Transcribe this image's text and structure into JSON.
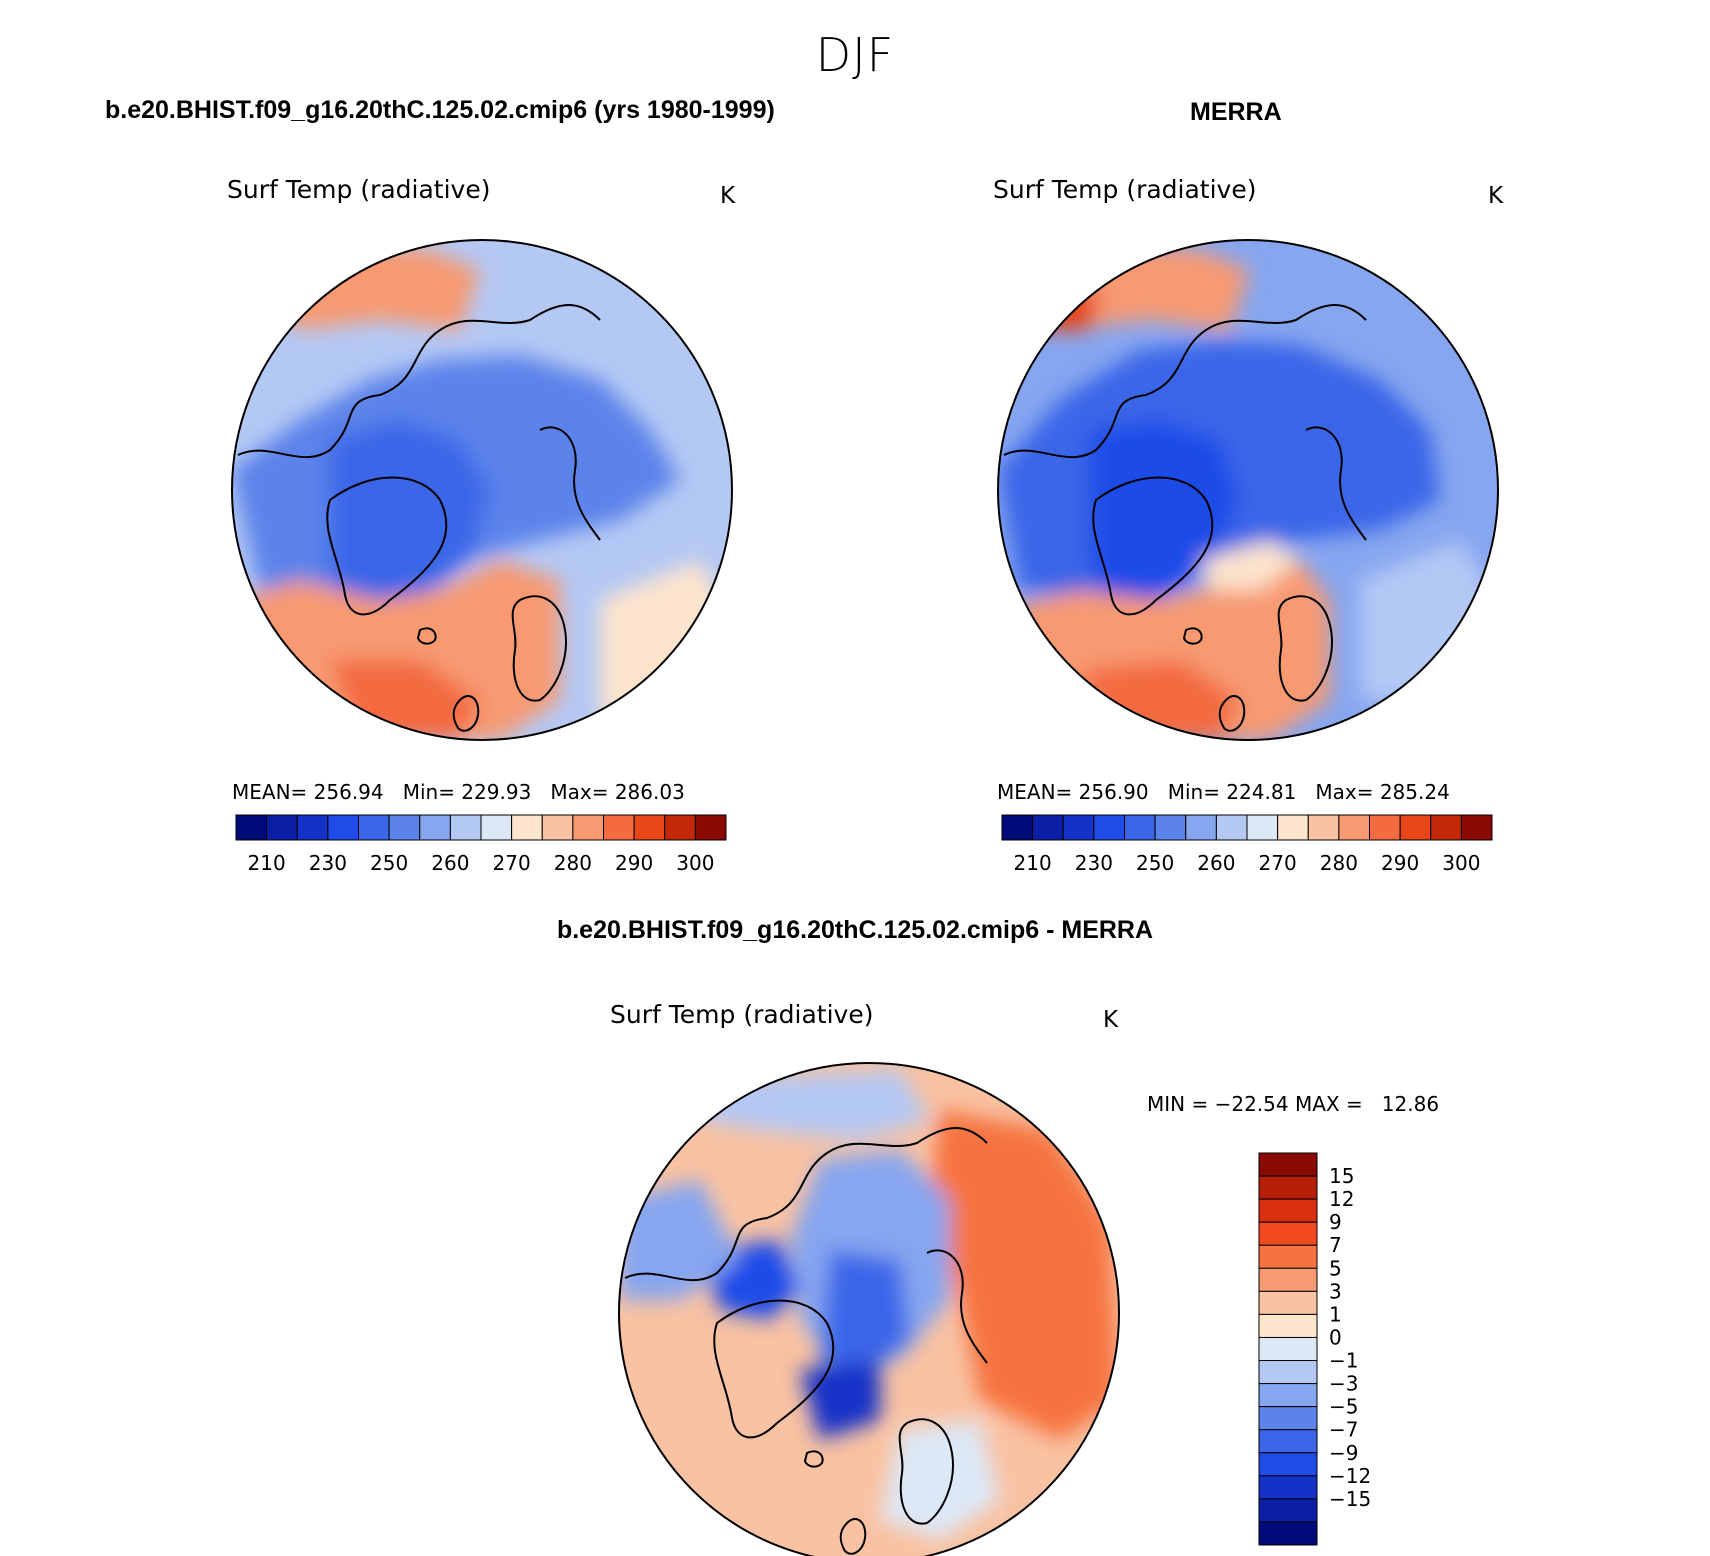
{
  "figure": {
    "title": "DJF"
  },
  "panels": {
    "left": {
      "header": "b.e20.BHIST.f09_g16.20thC.125.02.cmip6 (yrs 1980-1999)",
      "variable": "Surf Temp (radiative)",
      "units": "K",
      "stats": "MEAN= 256.94   Min= 229.93   Max= 286.03"
    },
    "right": {
      "header": "MERRA",
      "variable": "Surf Temp (radiative)",
      "units": "K",
      "stats": "MEAN= 256.90   Min= 224.81   Max= 285.24"
    },
    "diff": {
      "header": "b.e20.BHIST.f09_g16.20thC.125.02.cmip6 - MERRA",
      "variable": "Surf Temp (radiative)",
      "units": "K",
      "stats": "MIN = −22.54 MAX =   12.86"
    }
  },
  "chart_data": [
    {
      "type": "heatmap",
      "projection": "north-polar-stereographic",
      "title": "b.e20.BHIST.f09_g16.20thC.125.02.cmip6 (yrs 1980-1999)",
      "variable": "Surf Temp (radiative)",
      "units": "K",
      "mean": 256.94,
      "min": 229.93,
      "max": 286.03,
      "colorbar": {
        "orientation": "horizontal",
        "levels": [
          210,
          220,
          230,
          240,
          250,
          255,
          260,
          265,
          270,
          275,
          280,
          285,
          290,
          295,
          300
        ],
        "tick_labels": [
          "210",
          "230",
          "250",
          "260",
          "270",
          "280",
          "290",
          "300"
        ],
        "colors": [
          "#000b7a",
          "#0b1fa6",
          "#1432c8",
          "#1f4be8",
          "#3b66e8",
          "#5c83ea",
          "#86a6f0",
          "#b4c8f4",
          "#dde8f7",
          "#fde4cd",
          "#f9c2a2",
          "#f79a72",
          "#f36b3f",
          "#e84519",
          "#c52808",
          "#8a0a05"
        ]
      }
    },
    {
      "type": "heatmap",
      "projection": "north-polar-stereographic",
      "title": "MERRA",
      "variable": "Surf Temp (radiative)",
      "units": "K",
      "mean": 256.9,
      "min": 224.81,
      "max": 285.24,
      "colorbar": {
        "orientation": "horizontal",
        "levels": [
          210,
          220,
          230,
          240,
          250,
          255,
          260,
          265,
          270,
          275,
          280,
          285,
          290,
          295,
          300
        ],
        "tick_labels": [
          "210",
          "230",
          "250",
          "260",
          "270",
          "280",
          "290",
          "300"
        ],
        "colors": [
          "#000b7a",
          "#0b1fa6",
          "#1432c8",
          "#1f4be8",
          "#3b66e8",
          "#5c83ea",
          "#86a6f0",
          "#b4c8f4",
          "#dde8f7",
          "#fde4cd",
          "#f9c2a2",
          "#f79a72",
          "#f36b3f",
          "#e84519",
          "#c52808",
          "#8a0a05"
        ]
      }
    },
    {
      "type": "heatmap",
      "projection": "north-polar-stereographic",
      "title": "b.e20.BHIST.f09_g16.20thC.125.02.cmip6 - MERRA",
      "variable": "Surf Temp (radiative)",
      "units": "K",
      "min": -22.54,
      "max": 12.86,
      "colorbar": {
        "orientation": "vertical",
        "levels": [
          15,
          12,
          9,
          7,
          5,
          3,
          1,
          0,
          -1,
          -3,
          -5,
          -7,
          -9,
          -12,
          -15
        ],
        "tick_labels": [
          "15",
          "12",
          "9",
          "7",
          "5",
          "3",
          "1",
          "0",
          "−1",
          "−3",
          "−5",
          "−7",
          "−9",
          "−12",
          "−15"
        ],
        "colors": [
          "#8a0a05",
          "#b51f07",
          "#d83010",
          "#f14a1e",
          "#f6733f",
          "#f79a72",
          "#f9c2a2",
          "#fde4cd",
          "#dde8f7",
          "#b4c8f4",
          "#86a6f0",
          "#5c83ea",
          "#3b66e8",
          "#1f4be8",
          "#1432c8",
          "#0b1fa6",
          "#000b7a"
        ]
      }
    }
  ]
}
